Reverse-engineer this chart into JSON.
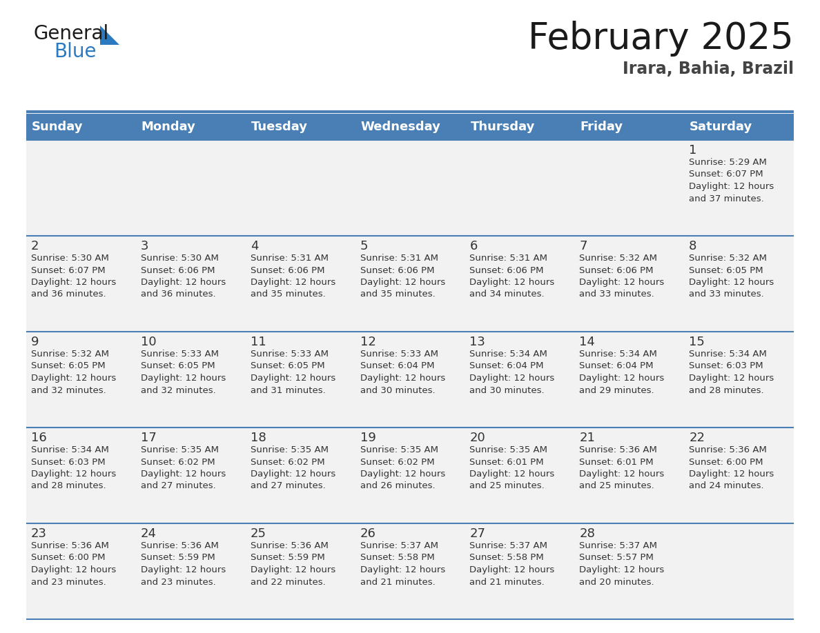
{
  "title": "February 2025",
  "subtitle": "Irara, Bahia, Brazil",
  "header_bg": "#4a7fb5",
  "header_text": "#ffffff",
  "row_bg": "#f2f2f2",
  "cell_border_color": "#4a7fb5",
  "text_color": "#333333",
  "day_headers": [
    "Sunday",
    "Monday",
    "Tuesday",
    "Wednesday",
    "Thursday",
    "Friday",
    "Saturday"
  ],
  "days": [
    {
      "day": 1,
      "col": 6,
      "row": 0,
      "sunrise": "5:29 AM",
      "sunset": "6:07 PM",
      "daylight_hrs": 12,
      "daylight_min": 37
    },
    {
      "day": 2,
      "col": 0,
      "row": 1,
      "sunrise": "5:30 AM",
      "sunset": "6:07 PM",
      "daylight_hrs": 12,
      "daylight_min": 36
    },
    {
      "day": 3,
      "col": 1,
      "row": 1,
      "sunrise": "5:30 AM",
      "sunset": "6:06 PM",
      "daylight_hrs": 12,
      "daylight_min": 36
    },
    {
      "day": 4,
      "col": 2,
      "row": 1,
      "sunrise": "5:31 AM",
      "sunset": "6:06 PM",
      "daylight_hrs": 12,
      "daylight_min": 35
    },
    {
      "day": 5,
      "col": 3,
      "row": 1,
      "sunrise": "5:31 AM",
      "sunset": "6:06 PM",
      "daylight_hrs": 12,
      "daylight_min": 35
    },
    {
      "day": 6,
      "col": 4,
      "row": 1,
      "sunrise": "5:31 AM",
      "sunset": "6:06 PM",
      "daylight_hrs": 12,
      "daylight_min": 34
    },
    {
      "day": 7,
      "col": 5,
      "row": 1,
      "sunrise": "5:32 AM",
      "sunset": "6:06 PM",
      "daylight_hrs": 12,
      "daylight_min": 33
    },
    {
      "day": 8,
      "col": 6,
      "row": 1,
      "sunrise": "5:32 AM",
      "sunset": "6:05 PM",
      "daylight_hrs": 12,
      "daylight_min": 33
    },
    {
      "day": 9,
      "col": 0,
      "row": 2,
      "sunrise": "5:32 AM",
      "sunset": "6:05 PM",
      "daylight_hrs": 12,
      "daylight_min": 32
    },
    {
      "day": 10,
      "col": 1,
      "row": 2,
      "sunrise": "5:33 AM",
      "sunset": "6:05 PM",
      "daylight_hrs": 12,
      "daylight_min": 32
    },
    {
      "day": 11,
      "col": 2,
      "row": 2,
      "sunrise": "5:33 AM",
      "sunset": "6:05 PM",
      "daylight_hrs": 12,
      "daylight_min": 31
    },
    {
      "day": 12,
      "col": 3,
      "row": 2,
      "sunrise": "5:33 AM",
      "sunset": "6:04 PM",
      "daylight_hrs": 12,
      "daylight_min": 30
    },
    {
      "day": 13,
      "col": 4,
      "row": 2,
      "sunrise": "5:34 AM",
      "sunset": "6:04 PM",
      "daylight_hrs": 12,
      "daylight_min": 30
    },
    {
      "day": 14,
      "col": 5,
      "row": 2,
      "sunrise": "5:34 AM",
      "sunset": "6:04 PM",
      "daylight_hrs": 12,
      "daylight_min": 29
    },
    {
      "day": 15,
      "col": 6,
      "row": 2,
      "sunrise": "5:34 AM",
      "sunset": "6:03 PM",
      "daylight_hrs": 12,
      "daylight_min": 28
    },
    {
      "day": 16,
      "col": 0,
      "row": 3,
      "sunrise": "5:34 AM",
      "sunset": "6:03 PM",
      "daylight_hrs": 12,
      "daylight_min": 28
    },
    {
      "day": 17,
      "col": 1,
      "row": 3,
      "sunrise": "5:35 AM",
      "sunset": "6:02 PM",
      "daylight_hrs": 12,
      "daylight_min": 27
    },
    {
      "day": 18,
      "col": 2,
      "row": 3,
      "sunrise": "5:35 AM",
      "sunset": "6:02 PM",
      "daylight_hrs": 12,
      "daylight_min": 27
    },
    {
      "day": 19,
      "col": 3,
      "row": 3,
      "sunrise": "5:35 AM",
      "sunset": "6:02 PM",
      "daylight_hrs": 12,
      "daylight_min": 26
    },
    {
      "day": 20,
      "col": 4,
      "row": 3,
      "sunrise": "5:35 AM",
      "sunset": "6:01 PM",
      "daylight_hrs": 12,
      "daylight_min": 25
    },
    {
      "day": 21,
      "col": 5,
      "row": 3,
      "sunrise": "5:36 AM",
      "sunset": "6:01 PM",
      "daylight_hrs": 12,
      "daylight_min": 25
    },
    {
      "day": 22,
      "col": 6,
      "row": 3,
      "sunrise": "5:36 AM",
      "sunset": "6:00 PM",
      "daylight_hrs": 12,
      "daylight_min": 24
    },
    {
      "day": 23,
      "col": 0,
      "row": 4,
      "sunrise": "5:36 AM",
      "sunset": "6:00 PM",
      "daylight_hrs": 12,
      "daylight_min": 23
    },
    {
      "day": 24,
      "col": 1,
      "row": 4,
      "sunrise": "5:36 AM",
      "sunset": "5:59 PM",
      "daylight_hrs": 12,
      "daylight_min": 23
    },
    {
      "day": 25,
      "col": 2,
      "row": 4,
      "sunrise": "5:36 AM",
      "sunset": "5:59 PM",
      "daylight_hrs": 12,
      "daylight_min": 22
    },
    {
      "day": 26,
      "col": 3,
      "row": 4,
      "sunrise": "5:37 AM",
      "sunset": "5:58 PM",
      "daylight_hrs": 12,
      "daylight_min": 21
    },
    {
      "day": 27,
      "col": 4,
      "row": 4,
      "sunrise": "5:37 AM",
      "sunset": "5:58 PM",
      "daylight_hrs": 12,
      "daylight_min": 21
    },
    {
      "day": 28,
      "col": 5,
      "row": 4,
      "sunrise": "5:37 AM",
      "sunset": "5:57 PM",
      "daylight_hrs": 12,
      "daylight_min": 20
    }
  ],
  "num_rows": 5,
  "num_cols": 7,
  "logo_general_color": "#1a1a1a",
  "logo_blue_color": "#2b7abf",
  "logo_triangle_color": "#2b7abf",
  "title_fontsize": 38,
  "subtitle_fontsize": 17,
  "header_fontsize": 13,
  "day_num_fontsize": 13,
  "cell_fontsize": 9.5
}
